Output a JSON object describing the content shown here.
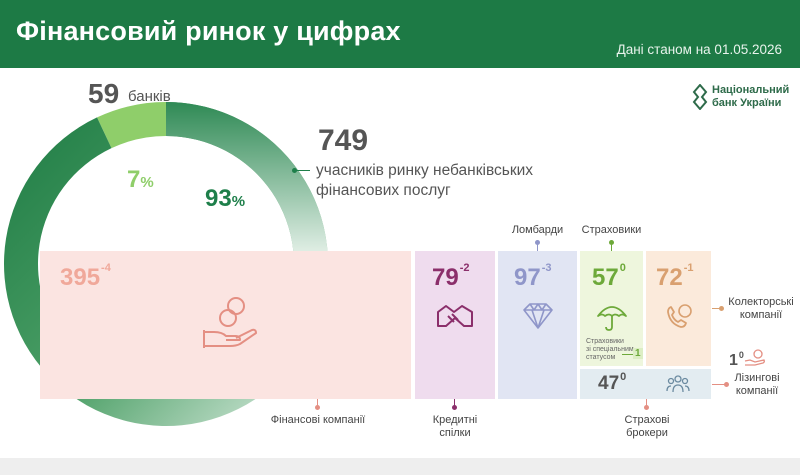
{
  "header": {
    "title": "Фінансовий ринок у цифрах",
    "date": "Дані станом на 01.05.2026"
  },
  "logo": {
    "line1": "Національний",
    "line2": "банк України"
  },
  "colors": {
    "brand": "#1d7a45",
    "banks": "#8fce6a",
    "nonbank": "#1e7f4a"
  },
  "chart_data": [
    {
      "type": "pie",
      "title": "",
      "slices": [
        {
          "label": "банків",
          "count": 59,
          "percent": 7
        },
        {
          "label": "учасників ринку небанківських фінансових послуг",
          "count": 749,
          "percent": 93
        }
      ]
    },
    {
      "type": "bar",
      "categories": [
        "Фінансові компанії",
        "Кредитні спілки",
        "Ломбарди",
        "Страховики",
        "Колекторські компанії",
        "Лізингові компанії",
        "Страхові брокери"
      ],
      "series": [
        {
          "values": [
            395,
            79,
            97,
            57,
            72,
            1,
            47
          ]
        },
        {
          "values": [
            -4,
            -2,
            -3,
            0,
            -1,
            0,
            0
          ]
        }
      ]
    }
  ],
  "donut": {
    "banks_count": "59",
    "banks_label": "банків",
    "banks_pct": "7",
    "nonbank_pct": "93",
    "pct_sign": "%",
    "nonbank_count": "749",
    "nonbank_label_1": "учасників ринку небанківських",
    "nonbank_label_2": "фінансових послуг"
  },
  "segments": {
    "finco": {
      "value": "395",
      "change": "-4",
      "label": "Фінансові компанії"
    },
    "credit": {
      "value": "79",
      "change": "-2",
      "label_1": "Кредитні",
      "label_2": "спілки"
    },
    "pawn": {
      "value": "97",
      "change": "-3",
      "label": "Ломбарди"
    },
    "insurers": {
      "value": "57",
      "change": "0",
      "label": "Страховики",
      "special_note_1": "Страховики",
      "special_note_2": "зі спеціальним",
      "special_note_3": "статусом",
      "special_count": "1"
    },
    "collect": {
      "value": "72",
      "change": "-1",
      "label_1": "Колекторські",
      "label_2": "компанії"
    },
    "leasing": {
      "value": "1",
      "change": "0",
      "label_1": "Лізингові",
      "label_2": "компанії"
    },
    "brokers": {
      "value": "47",
      "change": "0",
      "label_1": "Страхові",
      "label_2": "брокери"
    }
  }
}
